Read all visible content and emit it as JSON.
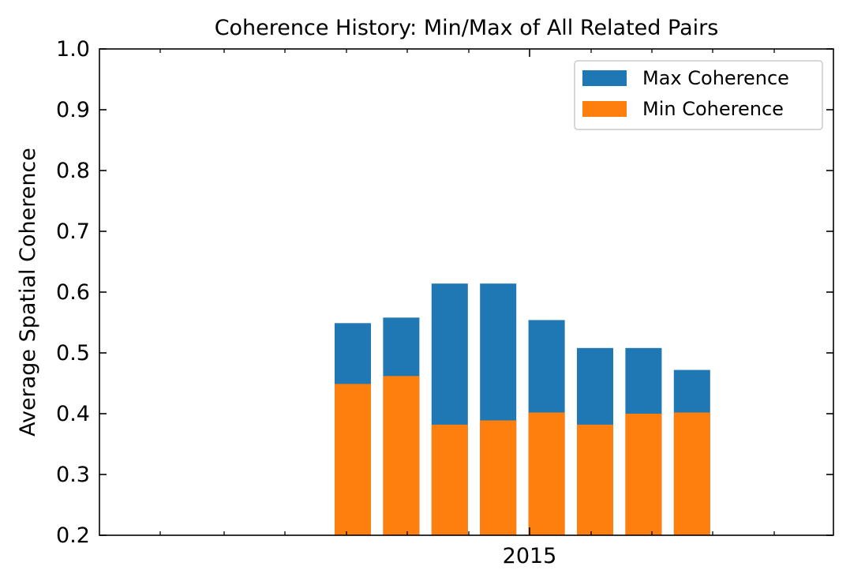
{
  "chart_data": {
    "type": "bar",
    "stacked": "overlay",
    "title": "Coherence History: Min/Max of All Related Pairs",
    "xlabel": "",
    "ylabel": "Average Spatial Coherence",
    "ylim": [
      0.2,
      1.0
    ],
    "yticks": [
      "0.2",
      "0.3",
      "0.4",
      "0.5",
      "0.6",
      "0.7",
      "0.8",
      "0.9",
      "1.0"
    ],
    "xtick_labels": [
      "2015"
    ],
    "grid": false,
    "legend_position": "top-right",
    "series": [
      {
        "name": "Max Coherence",
        "color": "#1f77b4",
        "values": [
          0.549,
          0.558,
          0.614,
          0.614,
          0.554,
          0.508,
          0.508,
          0.472
        ]
      },
      {
        "name": "Min Coherence",
        "color": "#ff7f0e",
        "values": [
          0.449,
          0.462,
          0.382,
          0.389,
          0.402,
          0.382,
          0.4,
          0.402
        ]
      }
    ]
  }
}
